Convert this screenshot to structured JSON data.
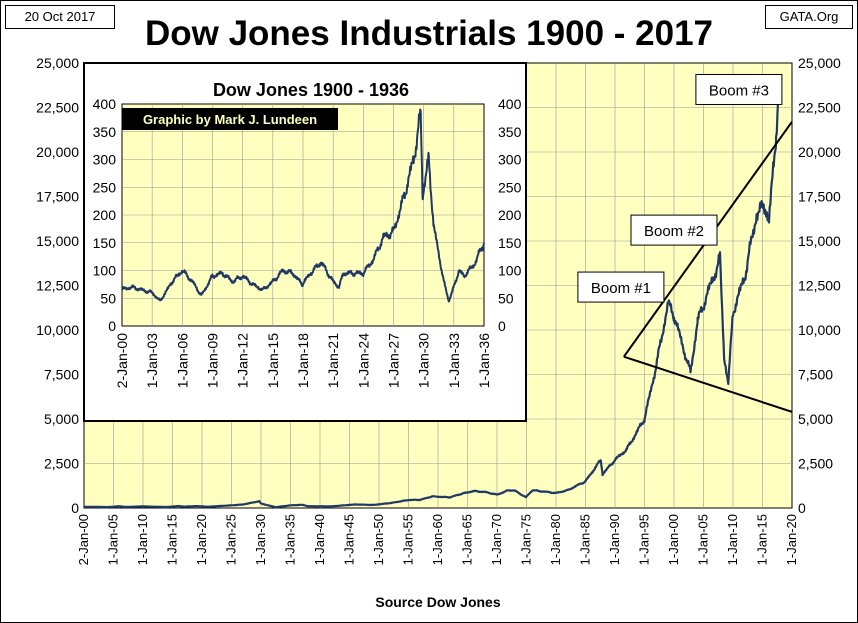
{
  "header": {
    "date": "20 Oct 2017",
    "source_tag": "GATA.Org",
    "title": "Dow Jones Industrials 1900 - 2017"
  },
  "chart_data": [
    {
      "type": "line",
      "title": "Dow Jones Industrials 1900 - 2017",
      "xlabel": "Source Dow Jones",
      "ylabel": "",
      "ylim": [
        0,
        25000
      ],
      "y_ticks": [
        "0",
        "2,500",
        "5,000",
        "7,500",
        "10,000",
        "12,500",
        "15,000",
        "17,500",
        "20,000",
        "22,500",
        "25,000"
      ],
      "x_ticks": [
        "2-Jan-00",
        "1-Jan-05",
        "1-Jan-10",
        "1-Jan-15",
        "1-Jan-20",
        "1-Jan-25",
        "1-Jan-30",
        "1-Jan-35",
        "1-Jan-40",
        "1-Jan-45",
        "1-Jan-50",
        "1-Jan-55",
        "1-Jan-60",
        "1-Jan-65",
        "1-Jan-70",
        "1-Jan-75",
        "1-Jan-80",
        "1-Jan-85",
        "1-Jan-90",
        "1-Jan-95",
        "1-Jan-00",
        "1-Jan-05",
        "1-Jan-10",
        "1-Jan-15",
        "1-Jan-20"
      ],
      "xlim": [
        1900,
        2020
      ],
      "grid": true,
      "background": "#ffffc0",
      "line_color": "#1f3864",
      "series": [
        {
          "x": [
            1900,
            1902,
            1904,
            1906,
            1907,
            1910,
            1914,
            1916,
            1917,
            1919,
            1921,
            1925,
            1927,
            1929.7,
            1930,
            1932.5,
            1935,
            1937,
            1938,
            1942,
            1946,
            1949,
            1952,
            1955,
            1957,
            1959,
            1962,
            1964,
            1966,
            1968,
            1970,
            1972,
            1973,
            1974.9,
            1976,
            1980,
            1982,
            1985,
            1987.6,
            1987.9,
            1990,
            1992,
            1995,
            1997,
            1999,
            2000,
            2002.8,
            2004,
            2007.8,
            2008.5,
            2009.2,
            2010,
            2012,
            2014,
            2015.5,
            2016.1,
            2016.9,
            2017.3,
            2017.8
          ],
          "y": [
            66,
            65,
            50,
            100,
            60,
            90,
            55,
            110,
            75,
            110,
            70,
            150,
            200,
            380,
            250,
            45,
            150,
            180,
            100,
            95,
            200,
            170,
            280,
            450,
            460,
            650,
            600,
            800,
            950,
            900,
            750,
            1000,
            980,
            600,
            1000,
            840,
            1000,
            1500,
            2700,
            1900,
            2700,
            3300,
            5000,
            8000,
            11500,
            10800,
            7600,
            10500,
            14000,
            8500,
            7000,
            11000,
            13000,
            16500,
            17000,
            16000,
            19500,
            21000,
            23300
          ]
        }
      ],
      "annotations": [
        {
          "text": "Boom #1",
          "x": 1991,
          "y": 12300
        },
        {
          "text": "Boom #2",
          "x": 2000,
          "y": 15500
        },
        {
          "text": "Boom #3",
          "x": 2011,
          "y": 23400
        }
      ],
      "trendlines": [
        {
          "from": [
            1991.5,
            8500
          ],
          "to": [
            2020,
            21700
          ]
        },
        {
          "from": [
            1991.5,
            8500
          ],
          "to": [
            2020,
            5400
          ]
        }
      ]
    },
    {
      "type": "line",
      "title": "Dow Jones 1900 - 1936",
      "subtitle": "Graphic by Mark J. Lundeen",
      "xlabel": "",
      "ylabel": "",
      "ylim": [
        0,
        400
      ],
      "y_ticks": [
        "0",
        "50",
        "100",
        "150",
        "200",
        "250",
        "300",
        "350",
        "400"
      ],
      "x_ticks": [
        "2-Jan-00",
        "1-Jan-03",
        "1-Jan-06",
        "1-Jan-09",
        "1-Jan-12",
        "1-Jan-15",
        "1-Jan-18",
        "1-Jan-21",
        "1-Jan-24",
        "1-Jan-27",
        "1-Jan-30",
        "1-Jan-33",
        "1-Jan-36"
      ],
      "xlim": [
        1900,
        1936
      ],
      "grid": true,
      "background": "#ffffc0",
      "line_color": "#1f3864",
      "series": [
        {
          "x": [
            1900,
            1901,
            1902,
            1903,
            1903.8,
            1905,
            1906,
            1907,
            1907.9,
            1909,
            1910,
            1911,
            1912,
            1913,
            1914,
            1915,
            1916,
            1917,
            1917.9,
            1919,
            1919.8,
            1921,
            1921.6,
            1922,
            1923,
            1924,
            1925,
            1926,
            1927,
            1928,
            1929,
            1929.7,
            1929.9,
            1930,
            1930.5,
            1931,
            1932,
            1932.5,
            1933,
            1933.5,
            1934,
            1935,
            1936
          ],
          "y": [
            66,
            70,
            65,
            60,
            45,
            80,
            100,
            80,
            55,
            90,
            95,
            80,
            90,
            75,
            65,
            80,
            100,
            95,
            75,
            100,
            115,
            80,
            70,
            95,
            95,
            95,
            120,
            160,
            170,
            230,
            300,
            380,
            230,
            250,
            300,
            180,
            80,
            45,
            70,
            100,
            90,
            110,
            150
          ]
        }
      ]
    }
  ]
}
